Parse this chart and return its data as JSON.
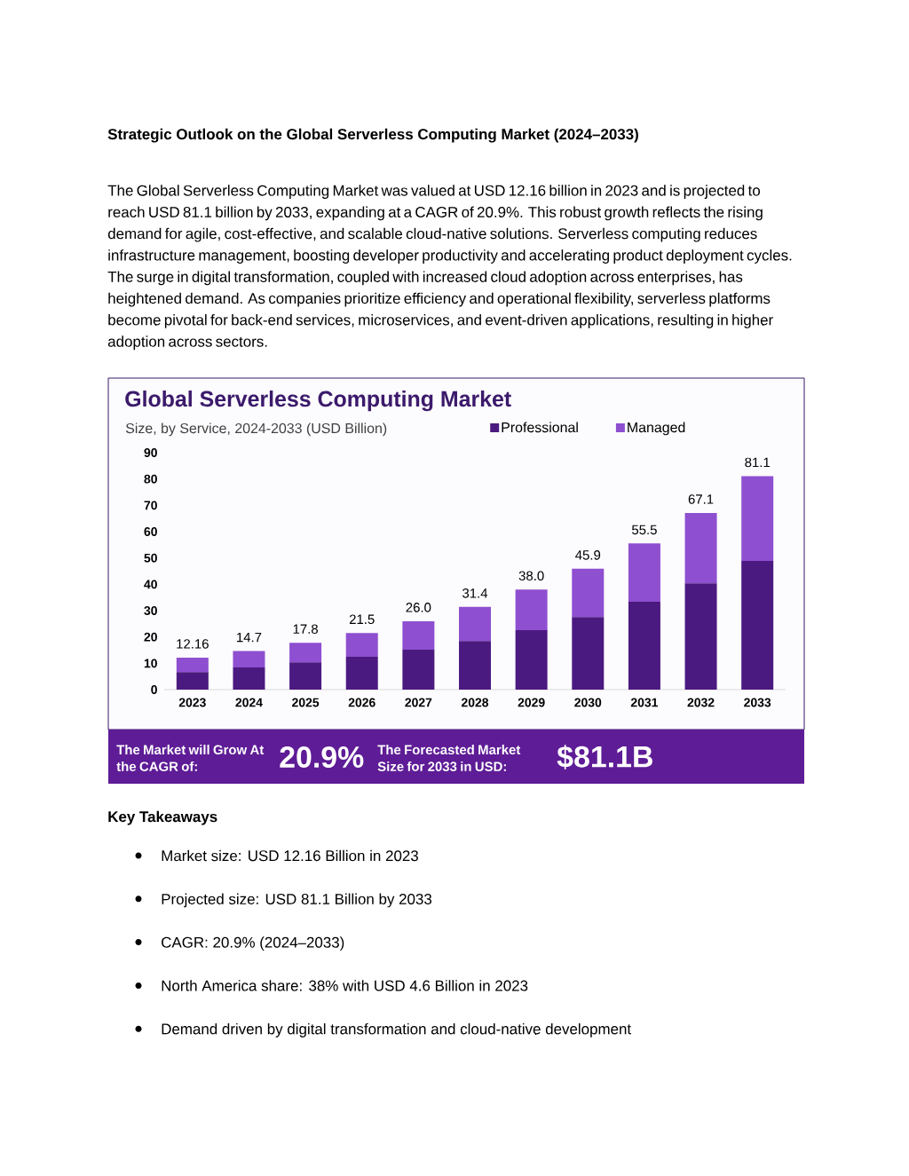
{
  "chart_data": {
    "type": "bar",
    "title": "Global Serverless Computing Market",
    "subtitle": "Size, by Service, 2024-2033 (USD Billion)",
    "categories": [
      "2023",
      "2024",
      "2025",
      "2026",
      "2027",
      "2028",
      "2029",
      "2030",
      "2031",
      "2032",
      "2033"
    ],
    "series": [
      {
        "name": "Professional",
        "color": "#4b1a80",
        "values": [
          6.7,
          8.4,
          10.4,
          12.5,
          15.2,
          18.5,
          22.6,
          27.6,
          33.4,
          40.4,
          48.9
        ]
      },
      {
        "name": "Managed",
        "color": "#8e4fd0",
        "values": [
          5.46,
          6.3,
          7.4,
          9.0,
          10.8,
          12.9,
          15.4,
          18.3,
          22.1,
          26.7,
          32.2
        ]
      }
    ],
    "stacked": true,
    "ylim": [
      0,
      90
    ],
    "yticks": [
      0,
      10,
      20,
      30,
      40,
      50,
      60,
      70,
      80,
      90
    ],
    "legend": "top right",
    "totals": [
      "12.16",
      "14.7",
      "17.8",
      "21.5",
      "26.0",
      "31.4",
      "38.0",
      "45.9",
      "55.5",
      "67.1",
      "81.1"
    ],
    "annotations": [
      "**Strategic Outlook on the Global Serverless Computing Market (2024–2033)**",
      "The Global Serverless Computing Market was valued at USD 12.16 billion in 2023 and is projected to reach USD 81.1 billion by 2033, expanding at a CAGR of 20.9%. This robust growth reflects the rising demand for agile, cost-effective, and scalable cloud-native solutions. Serverless computing reduces infrastructure management, boosting developer productivity and accelerating product deployment cycles. The surge in digital transformation, coupled with increased cloud adoption across enterprises, has heightened demand. As companies prioritize efficiency and operational flexibility, serverless platforms become pivotal for back-end services, microservices, and event-driven applications, resulting in higher adoption across sectors.",
      "**Key Takeaways**",
      "Market size: USD 12.16 Billion in 2023",
      "Projected size: USD 81.1 Billion by 2033",
      "CAGR: 20.9% (2024–2033)",
      "North America share: 38% with USD 4.6 Billion in 2023",
      "Demand driven by digital transformation and cloud-native development",
      "The Market will Grow At the CAGR of:",
      "20.9%",
      "The Forecasted Market Size for 2033 in USD:",
      "$81.1B"
    ]
  }
}
